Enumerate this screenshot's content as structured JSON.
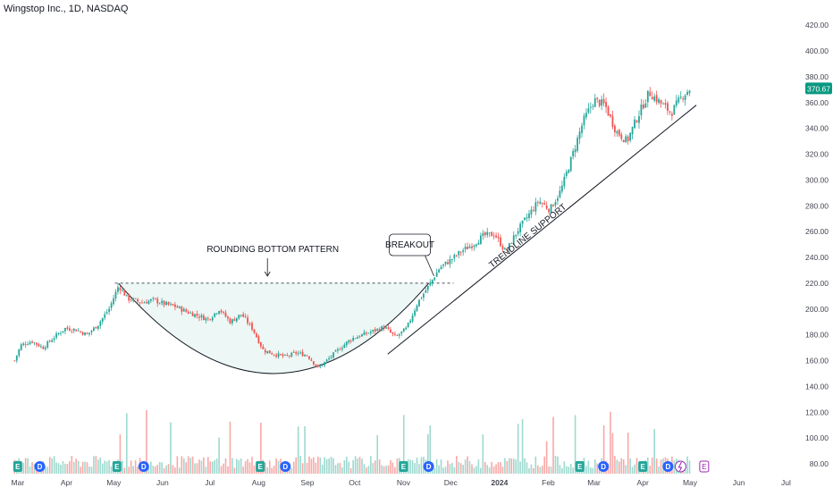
{
  "header": {
    "title": "Wingstop Inc., 1D, NASDAQ"
  },
  "chart_data": {
    "type": "candlestick",
    "symbol": "Wingstop Inc.",
    "interval": "1D",
    "exchange": "NASDAQ",
    "last_price": "370.67",
    "ylim": [
      75,
      430
    ],
    "y_ticks": [
      "420.00",
      "400.00",
      "380.00",
      "360.00",
      "340.00",
      "320.00",
      "300.00",
      "280.00",
      "260.00",
      "240.00",
      "220.00",
      "200.00",
      "180.00",
      "160.00",
      "140.00",
      "120.00",
      "100.00",
      "80.00"
    ],
    "x_ticks": [
      "Mar",
      "Apr",
      "May",
      "Jun",
      "Jul",
      "Aug",
      "Sep",
      "Oct",
      "Nov",
      "Dec",
      "2024",
      "Feb",
      "Mar",
      "Apr",
      "May",
      "Jun",
      "Jul"
    ],
    "price_path": [
      {
        "date": "2023-02-27",
        "close": 160
      },
      {
        "date": "2023-03-03",
        "close": 172
      },
      {
        "date": "2023-03-10",
        "close": 175
      },
      {
        "date": "2023-03-17",
        "close": 170
      },
      {
        "date": "2023-03-24",
        "close": 178
      },
      {
        "date": "2023-03-31",
        "close": 185
      },
      {
        "date": "2023-04-07",
        "close": 184
      },
      {
        "date": "2023-04-14",
        "close": 180
      },
      {
        "date": "2023-04-21",
        "close": 188
      },
      {
        "date": "2023-04-28",
        "close": 200
      },
      {
        "date": "2023-05-04",
        "close": 218
      },
      {
        "date": "2023-05-10",
        "close": 208
      },
      {
        "date": "2023-05-19",
        "close": 205
      },
      {
        "date": "2023-05-26",
        "close": 207
      },
      {
        "date": "2023-06-02",
        "close": 204
      },
      {
        "date": "2023-06-09",
        "close": 202
      },
      {
        "date": "2023-06-16",
        "close": 198
      },
      {
        "date": "2023-06-23",
        "close": 195
      },
      {
        "date": "2023-06-30",
        "close": 192
      },
      {
        "date": "2023-07-07",
        "close": 200
      },
      {
        "date": "2023-07-14",
        "close": 190
      },
      {
        "date": "2023-07-21",
        "close": 196
      },
      {
        "date": "2023-07-28",
        "close": 185
      },
      {
        "date": "2023-08-04",
        "close": 168
      },
      {
        "date": "2023-08-11",
        "close": 165
      },
      {
        "date": "2023-08-18",
        "close": 163
      },
      {
        "date": "2023-08-25",
        "close": 166
      },
      {
        "date": "2023-09-01",
        "close": 164
      },
      {
        "date": "2023-09-08",
        "close": 154
      },
      {
        "date": "2023-09-15",
        "close": 162
      },
      {
        "date": "2023-09-22",
        "close": 170
      },
      {
        "date": "2023-09-29",
        "close": 177
      },
      {
        "date": "2023-10-06",
        "close": 180
      },
      {
        "date": "2023-10-13",
        "close": 183
      },
      {
        "date": "2023-10-20",
        "close": 186
      },
      {
        "date": "2023-10-27",
        "close": 178
      },
      {
        "date": "2023-11-03",
        "close": 185
      },
      {
        "date": "2023-11-10",
        "close": 205
      },
      {
        "date": "2023-11-17",
        "close": 218
      },
      {
        "date": "2023-11-24",
        "close": 232
      },
      {
        "date": "2023-12-01",
        "close": 238
      },
      {
        "date": "2023-12-08",
        "close": 245
      },
      {
        "date": "2023-12-15",
        "close": 250
      },
      {
        "date": "2023-12-22",
        "close": 257
      },
      {
        "date": "2023-12-29",
        "close": 258
      },
      {
        "date": "2024-01-05",
        "close": 244
      },
      {
        "date": "2024-01-12",
        "close": 260
      },
      {
        "date": "2024-01-19",
        "close": 272
      },
      {
        "date": "2024-01-26",
        "close": 284
      },
      {
        "date": "2024-02-02",
        "close": 277
      },
      {
        "date": "2024-02-09",
        "close": 292
      },
      {
        "date": "2024-02-16",
        "close": 318
      },
      {
        "date": "2024-02-23",
        "close": 345
      },
      {
        "date": "2024-03-01",
        "close": 362
      },
      {
        "date": "2024-03-08",
        "close": 358
      },
      {
        "date": "2024-03-15",
        "close": 338
      },
      {
        "date": "2024-03-22",
        "close": 330
      },
      {
        "date": "2024-03-29",
        "close": 350
      },
      {
        "date": "2024-04-05",
        "close": 368
      },
      {
        "date": "2024-04-12",
        "close": 360
      },
      {
        "date": "2024-04-19",
        "close": 352
      },
      {
        "date": "2024-04-26",
        "close": 365
      },
      {
        "date": "2024-05-01",
        "close": 370.67
      }
    ],
    "annotations": {
      "pattern_label": "ROUNDING BOTTOM PATTERN",
      "breakout_label": "BREAKOUT",
      "trendline_label": "TRENDLINE SUPPORT",
      "resistance_level": 220
    },
    "event_markers": [
      {
        "label": "E",
        "date": "2023-03-01"
      },
      {
        "label": "D",
        "date": "2023-03-15"
      },
      {
        "label": "E",
        "date": "2023-05-03"
      },
      {
        "label": "D",
        "date": "2023-05-20"
      },
      {
        "label": "E",
        "date": "2023-08-02"
      },
      {
        "label": "D",
        "date": "2023-08-18"
      },
      {
        "label": "E",
        "date": "2023-11-01"
      },
      {
        "label": "D",
        "date": "2023-11-17"
      },
      {
        "label": "E",
        "date": "2024-02-21"
      },
      {
        "label": "D",
        "date": "2024-03-07"
      },
      {
        "label": "E",
        "date": "2024-04-01"
      },
      {
        "label": "D",
        "date": "2024-04-17"
      }
    ],
    "colors": {
      "up": "#26a69a",
      "down": "#ef5350",
      "last_price_bg": "#089981",
      "pattern_fill": "#e6f4f1",
      "earnings_marker": "#9c27b0"
    },
    "upcoming_markers": {
      "lightning_icon": "lightning-icon",
      "earnings_label": "E"
    }
  }
}
